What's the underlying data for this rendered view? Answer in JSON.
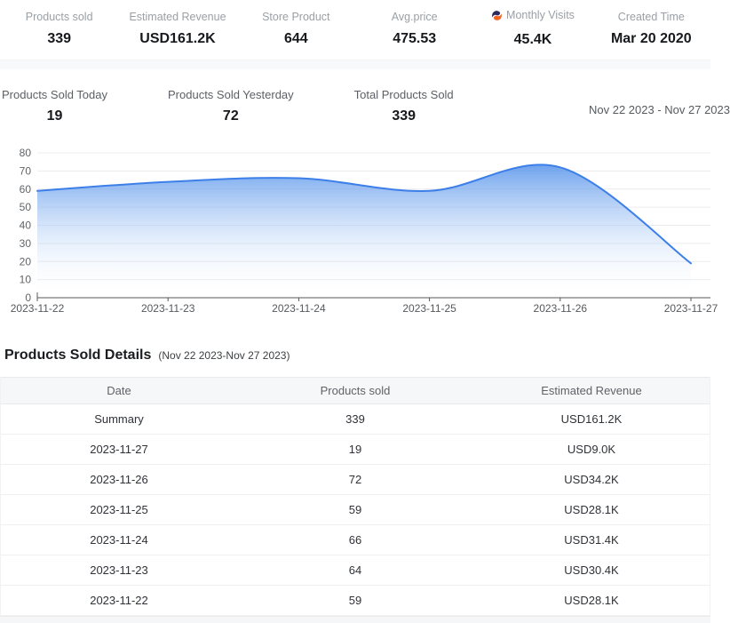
{
  "topStats": {
    "items": [
      {
        "label": "Products sold",
        "value": "339"
      },
      {
        "label": "Estimated Revenue",
        "value": "USD161.2K"
      },
      {
        "label": "Store Product",
        "value": "644"
      },
      {
        "label": "Avg.price",
        "value": "475.53"
      },
      {
        "label": "Monthly Visits",
        "value": "45.4K",
        "icon": "similarweb-icon"
      },
      {
        "label": "Created Time",
        "value": "Mar 20 2020"
      }
    ]
  },
  "soldStats": {
    "items": [
      {
        "label": "Products Sold Today",
        "value": "19"
      },
      {
        "label": "Products Sold Yesterday",
        "value": "72"
      },
      {
        "label": "Total Products Sold",
        "value": "339"
      }
    ],
    "date_range": "Nov 22 2023 - Nov 27 2023"
  },
  "chart_data": {
    "type": "area",
    "title": "",
    "x": [
      "2023-11-22",
      "2023-11-23",
      "2023-11-24",
      "2023-11-25",
      "2023-11-26",
      "2023-11-27"
    ],
    "values": [
      59,
      64,
      66,
      59,
      72,
      19
    ],
    "xlabel": "",
    "ylabel": "",
    "ylim": [
      0,
      80
    ],
    "ytick_step": 10,
    "grid": true,
    "legend": "none",
    "line_color": "#3d7fe8",
    "fill_top": "rgba(84,146,235,0.85)",
    "fill_bottom": "rgba(255,255,255,0)",
    "grid_color": "#ececec",
    "axis_color": "#55585a",
    "tick_label_color": "#606468"
  },
  "details": {
    "title": "Products Sold Details",
    "subtitle": "(Nov 22 2023-Nov 27 2023)",
    "table": {
      "headers": [
        "Date",
        "Products sold",
        "Estimated Revenue"
      ],
      "rows": [
        [
          "Summary",
          "339",
          "USD161.2K"
        ],
        [
          "2023-11-27",
          "19",
          "USD9.0K"
        ],
        [
          "2023-11-26",
          "72",
          "USD34.2K"
        ],
        [
          "2023-11-25",
          "59",
          "USD28.1K"
        ],
        [
          "2023-11-24",
          "66",
          "USD31.4K"
        ],
        [
          "2023-11-23",
          "64",
          "USD30.4K"
        ],
        [
          "2023-11-22",
          "59",
          "USD28.1K"
        ]
      ]
    }
  }
}
